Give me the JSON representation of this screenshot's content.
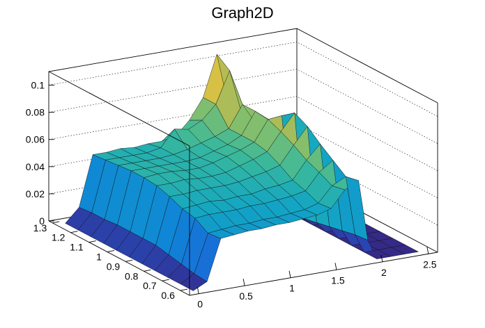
{
  "chart_data": {
    "type": "surface",
    "title": "Graph2D",
    "x_ticks": [
      "0",
      "0.5",
      "1",
      "1.5",
      "2",
      "2.5"
    ],
    "y_ticks": [
      "0.6",
      "0.7",
      "0.8",
      "0.9",
      "1",
      "1.1",
      "1.2",
      "1.3"
    ],
    "z_ticks": [
      "0",
      "0.02",
      "0.04",
      "0.06",
      "0.08",
      "0.1"
    ],
    "x_range": [
      -0.1,
      2.6
    ],
    "y_range": [
      0.55,
      1.32
    ],
    "z_range": [
      0,
      0.11
    ],
    "grid": true,
    "colormap": [
      "#352a87",
      "#1f5ed8",
      "#0f86d6",
      "#13a6c3",
      "#37b89d",
      "#7dbe70",
      "#c1bb4d",
      "#f3c93b",
      "#f9fb0e"
    ],
    "surface_x": [
      0.0,
      0.15,
      0.3,
      0.45,
      0.6,
      0.75,
      0.9,
      1.05,
      1.2,
      1.35,
      1.5,
      1.65,
      1.8,
      1.9,
      2.0,
      2.15,
      2.3,
      2.45
    ],
    "surface_y": [
      0.58,
      0.65,
      0.72,
      0.79,
      0.86,
      0.93,
      1.0,
      1.07,
      1.14,
      1.21,
      1.28
    ],
    "surface_z": [
      [
        0.0,
        0.005,
        0.035,
        0.036,
        0.037,
        0.037,
        0.038,
        0.038,
        0.039,
        0.04,
        0.043,
        0.055,
        0.06,
        0.015,
        0.0,
        0.0,
        0.0,
        0.0
      ],
      [
        0.0,
        0.006,
        0.034,
        0.035,
        0.036,
        0.036,
        0.037,
        0.037,
        0.038,
        0.039,
        0.042,
        0.053,
        0.058,
        0.014,
        0.0,
        0.0,
        0.0,
        0.0
      ],
      [
        0.0,
        0.008,
        0.04,
        0.041,
        0.041,
        0.041,
        0.042,
        0.042,
        0.043,
        0.044,
        0.046,
        0.058,
        0.065,
        0.012,
        0.0,
        0.0,
        0.0,
        0.0
      ],
      [
        0.0,
        0.01,
        0.042,
        0.043,
        0.044,
        0.043,
        0.044,
        0.044,
        0.046,
        0.047,
        0.049,
        0.062,
        0.072,
        0.01,
        0.0,
        0.0,
        0.0,
        0.0
      ],
      [
        0.0,
        0.012,
        0.046,
        0.046,
        0.047,
        0.047,
        0.047,
        0.048,
        0.05,
        0.052,
        0.055,
        0.068,
        0.08,
        0.008,
        0.0,
        0.0,
        0.0,
        0.0
      ],
      [
        0.0,
        0.012,
        0.049,
        0.049,
        0.05,
        0.049,
        0.049,
        0.05,
        0.053,
        0.056,
        0.06,
        0.073,
        0.085,
        0.006,
        0.0,
        0.0,
        0.0,
        0.0
      ],
      [
        0.0,
        0.012,
        0.05,
        0.051,
        0.051,
        0.05,
        0.05,
        0.052,
        0.055,
        0.058,
        0.062,
        0.077,
        0.078,
        0.004,
        0.0,
        0.0,
        0.0,
        0.0
      ],
      [
        0.0,
        0.012,
        0.05,
        0.05,
        0.05,
        0.05,
        0.05,
        0.051,
        0.054,
        0.057,
        0.062,
        0.078,
        0.07,
        0.004,
        0.0,
        0.0,
        0.0,
        0.0
      ],
      [
        0.0,
        0.011,
        0.049,
        0.049,
        0.049,
        0.049,
        0.05,
        0.052,
        0.055,
        0.058,
        0.062,
        0.078,
        0.062,
        0.003,
        0.0,
        0.0,
        0.0,
        0.0
      ],
      [
        0.0,
        0.011,
        0.048,
        0.048,
        0.048,
        0.048,
        0.05,
        0.062,
        0.06,
        0.065,
        0.075,
        0.098,
        0.06,
        0.003,
        0.0,
        0.0,
        0.0,
        0.0
      ],
      [
        0.0,
        0.01,
        0.047,
        0.047,
        0.048,
        0.047,
        0.048,
        0.048,
        0.05,
        0.06,
        0.075,
        0.105,
        0.058,
        0.002,
        0.0,
        0.0,
        0.0,
        0.0
      ]
    ]
  }
}
